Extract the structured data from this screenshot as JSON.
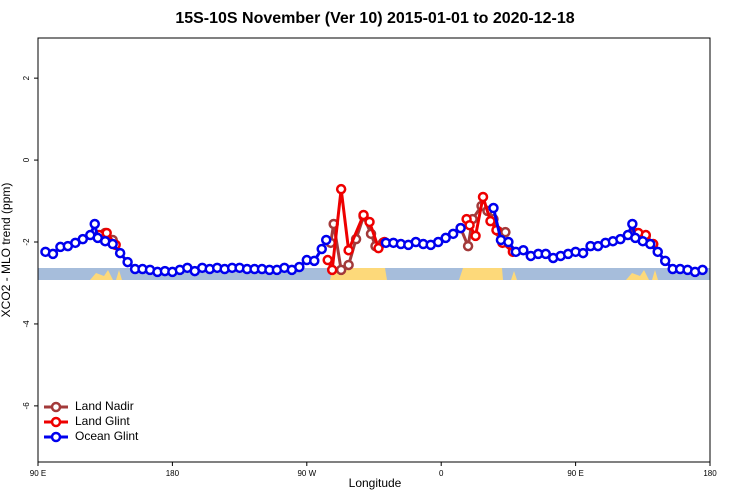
{
  "chart_data": {
    "type": "line",
    "title": "15S-10S November (Ver 10)   2015-01-01 to 2020-12-18",
    "xlabel": "Longitude",
    "ylabel": "XCO2 - MLO trend (ppm)",
    "xlim": [
      90,
      540
    ],
    "xticks": [
      {
        "value": 90,
        "label": "90 E"
      },
      {
        "value": 180,
        "label": "180"
      },
      {
        "value": 270,
        "label": "90 W"
      },
      {
        "value": 360,
        "label": "0"
      },
      {
        "value": 450,
        "label": "90 E"
      },
      {
        "value": 540,
        "label": "180"
      }
    ],
    "ylim": [
      -7.37,
      2.98
    ],
    "yticks": [
      2,
      0,
      -2,
      -4,
      -6
    ],
    "legend": "bottom-left",
    "series": [
      {
        "name": "Land Nadir",
        "color": "#a33a3a",
        "x": [
          135,
          140,
          null,
          286,
          288,
          293,
          298,
          303,
          308,
          313,
          316,
          321,
          null,
          373,
          378,
          381,
          387,
          391,
          395,
          399,
          403,
          null,
          490,
          497
        ],
        "values": [
          -1.78,
          -1.95,
          null,
          -2.02,
          -1.56,
          -2.68,
          -2.56,
          -1.93,
          -1.37,
          -1.8,
          -2.1,
          -2.02,
          null,
          -1.66,
          -2.1,
          -1.44,
          -1.12,
          -1.24,
          -1.44,
          -1.76,
          -1.76,
          null,
          -1.78,
          -1.85
        ]
      },
      {
        "name": "Land Glint",
        "color": "#ee0000",
        "x": [
          131,
          136,
          142,
          null,
          284,
          287,
          293,
          298,
          308,
          312,
          318,
          322,
          null,
          377,
          379,
          383,
          388,
          393,
          397,
          401,
          408,
          null,
          492,
          497,
          502
        ],
        "values": [
          -1.83,
          -1.78,
          -2.07,
          null,
          -2.44,
          -2.68,
          -0.71,
          -2.2,
          -1.34,
          -1.51,
          -2.15,
          -2.0,
          null,
          -1.44,
          -1.59,
          -1.85,
          -0.9,
          -1.49,
          -1.71,
          -2.02,
          -2.24,
          null,
          -1.78,
          -1.83,
          -2.05
        ]
      },
      {
        "name": "Ocean Glint",
        "color": "#0000ee",
        "x": [
          95,
          100,
          105,
          110,
          115,
          120,
          125,
          128,
          130,
          135,
          140,
          145,
          150,
          155,
          160,
          165,
          170,
          175,
          180,
          185,
          190,
          195,
          200,
          205,
          210,
          215,
          220,
          225,
          230,
          235,
          240,
          245,
          250,
          255,
          260,
          265,
          270,
          275,
          280,
          283,
          null,
          323,
          328,
          333,
          338,
          343,
          348,
          353,
          358,
          363,
          368,
          373,
          null,
          395,
          400,
          405,
          410,
          415,
          420,
          425,
          430,
          435,
          440,
          445,
          450,
          455,
          460,
          465,
          470,
          475,
          480,
          485,
          488,
          490,
          495,
          500,
          505,
          510,
          515,
          520,
          525,
          530,
          535
        ],
        "values": [
          -2.24,
          -2.29,
          -2.12,
          -2.1,
          -2.02,
          -1.93,
          -1.83,
          -1.56,
          -1.9,
          -1.98,
          -2.05,
          -2.27,
          -2.49,
          -2.66,
          -2.66,
          -2.68,
          -2.73,
          -2.71,
          -2.73,
          -2.68,
          -2.63,
          -2.71,
          -2.63,
          -2.66,
          -2.63,
          -2.66,
          -2.63,
          -2.63,
          -2.66,
          -2.66,
          -2.66,
          -2.68,
          -2.68,
          -2.63,
          -2.68,
          -2.61,
          -2.44,
          -2.46,
          -2.17,
          -1.95,
          null,
          -2.02,
          -2.02,
          -2.05,
          -2.07,
          -2.0,
          -2.05,
          -2.07,
          -2.0,
          -1.9,
          -1.8,
          -1.66,
          null,
          -1.17,
          -1.95,
          -2.0,
          -2.24,
          -2.2,
          -2.34,
          -2.29,
          -2.29,
          -2.39,
          -2.34,
          -2.29,
          -2.24,
          -2.27,
          -2.1,
          -2.1,
          -2.02,
          -1.98,
          -1.93,
          -1.83,
          -1.56,
          -1.9,
          -1.98,
          -2.05,
          -2.24,
          -2.46,
          -2.66,
          -2.66,
          -2.68,
          -2.73,
          -2.68
        ]
      }
    ]
  }
}
